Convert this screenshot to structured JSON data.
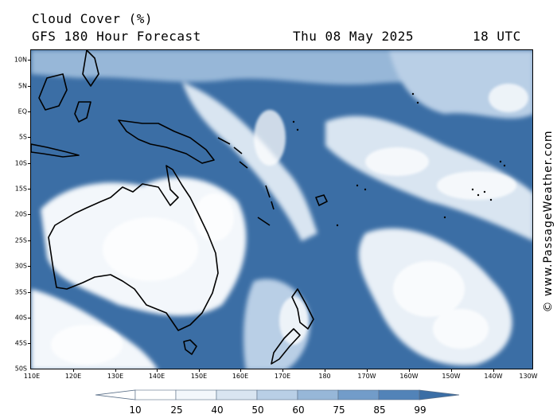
{
  "header": {
    "title": "Cloud Cover (%)",
    "subtitle": "GFS 180 Hour Forecast",
    "date": "Thu 08 May 2025",
    "time": "18 UTC"
  },
  "map": {
    "ocean_color": "#3b6ea5",
    "coast_color": "#000000",
    "lat_labels": [
      "10N",
      "5N",
      "EQ",
      "5S",
      "10S",
      "15S",
      "20S",
      "25S",
      "30S",
      "35S",
      "40S",
      "45S",
      "50S"
    ],
    "lon_labels": [
      "110E",
      "120E",
      "130E",
      "140E",
      "150E",
      "160E",
      "170E",
      "180",
      "170W",
      "160W",
      "150W",
      "140W",
      "130W"
    ]
  },
  "legend": {
    "values": [
      "10",
      "25",
      "40",
      "50",
      "60",
      "75",
      "85",
      "99"
    ],
    "colors": [
      "#ffffff",
      "#f3f7fb",
      "#d9e5f1",
      "#b9cfe6",
      "#97b7d8",
      "#729cc9",
      "#5283b8",
      "#3b6ea5"
    ]
  },
  "credit": "© www.PassageWeather.com"
}
